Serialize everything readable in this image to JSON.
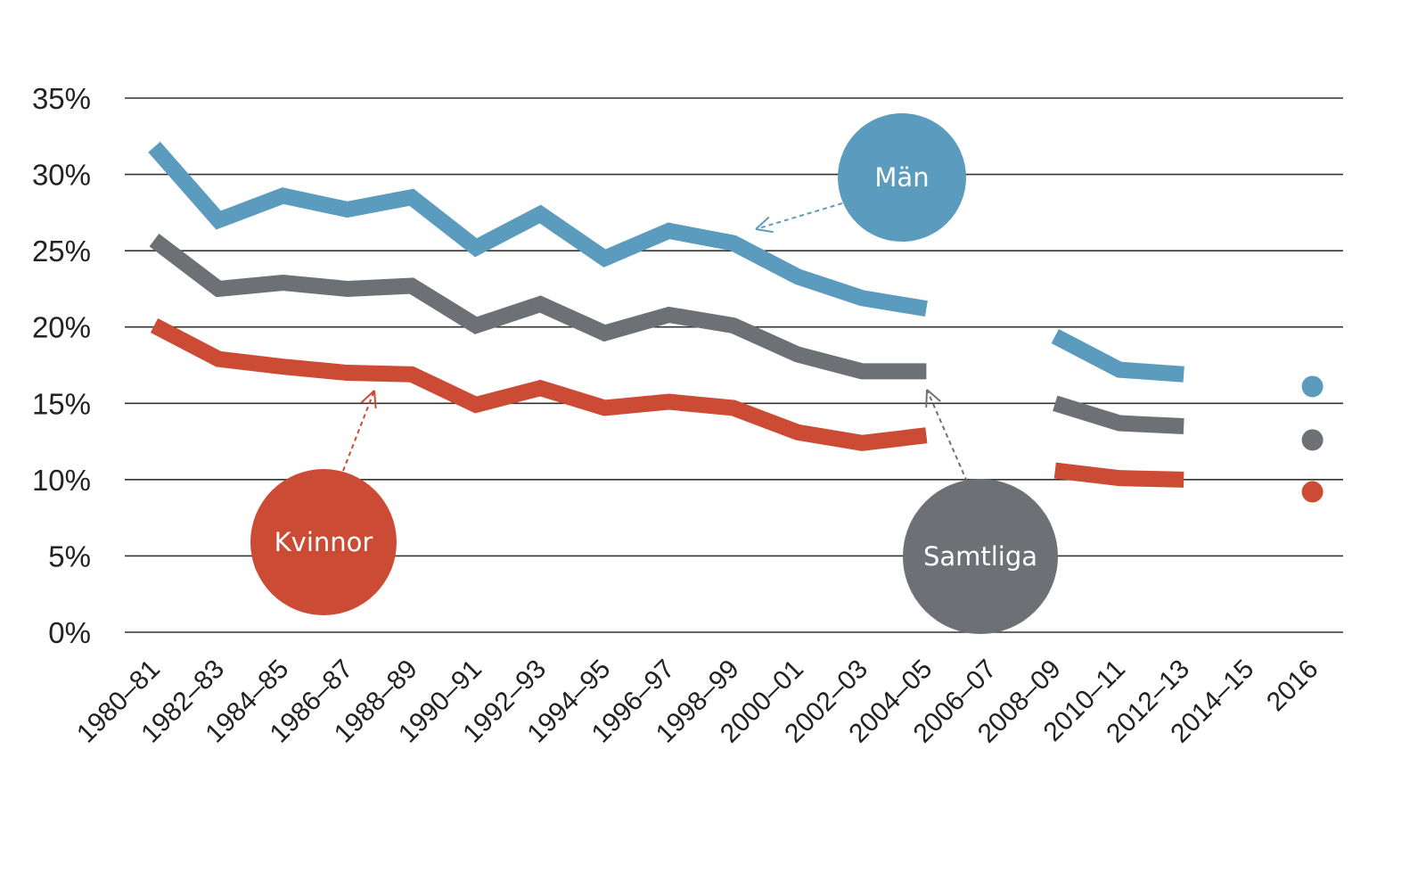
{
  "chart_data": {
    "type": "line",
    "title": "",
    "xlabel": "",
    "ylabel": "",
    "ylim": [
      0,
      35
    ],
    "yticks": [
      "0%",
      "5%",
      "10%",
      "15%",
      "20%",
      "25%",
      "30%",
      "35%"
    ],
    "ytick_values": [
      0,
      5,
      10,
      15,
      20,
      25,
      30,
      35
    ],
    "grid": true,
    "categories": [
      "1980–81",
      "1982–83",
      "1984–85",
      "1986–87",
      "1988–89",
      "1990–91",
      "1992–93",
      "1994–95",
      "1996–97",
      "1998–99",
      "2000–01",
      "2002–03",
      "2004–05",
      "2006–07",
      "2008–09",
      "2010–11",
      "2012–13",
      "2014–15",
      "2016"
    ],
    "series": [
      {
        "name": "Män",
        "color": "#5b9bbd",
        "values": [
          31.8,
          27.0,
          28.6,
          27.7,
          28.5,
          25.2,
          27.4,
          24.5,
          26.3,
          25.5,
          23.3,
          21.9,
          21.2,
          null,
          19.4,
          17.2,
          16.9,
          null,
          16.1
        ]
      },
      {
        "name": "Samtliga",
        "color": "#6d7175",
        "values": [
          25.7,
          22.5,
          22.9,
          22.5,
          22.7,
          20.1,
          21.5,
          19.6,
          20.8,
          20.1,
          18.2,
          17.1,
          17.1,
          null,
          15.0,
          13.7,
          13.5,
          null,
          12.6
        ]
      },
      {
        "name": "Kvinnor",
        "color": "#cc4b35",
        "values": [
          20.1,
          17.9,
          17.4,
          17.0,
          16.9,
          14.9,
          16.0,
          14.7,
          15.1,
          14.7,
          13.1,
          12.4,
          12.9,
          null,
          10.6,
          10.1,
          10.0,
          null,
          9.2
        ]
      }
    ],
    "last_point_style": "dot",
    "annotations": [
      {
        "label": "Män",
        "series": "Män",
        "color": "#5b9bbd"
      },
      {
        "label": "Kvinnor",
        "series": "Kvinnor",
        "color": "#cc4b35"
      },
      {
        "label": "Samtliga",
        "series": "Samtliga",
        "color": "#6d7175"
      }
    ]
  }
}
